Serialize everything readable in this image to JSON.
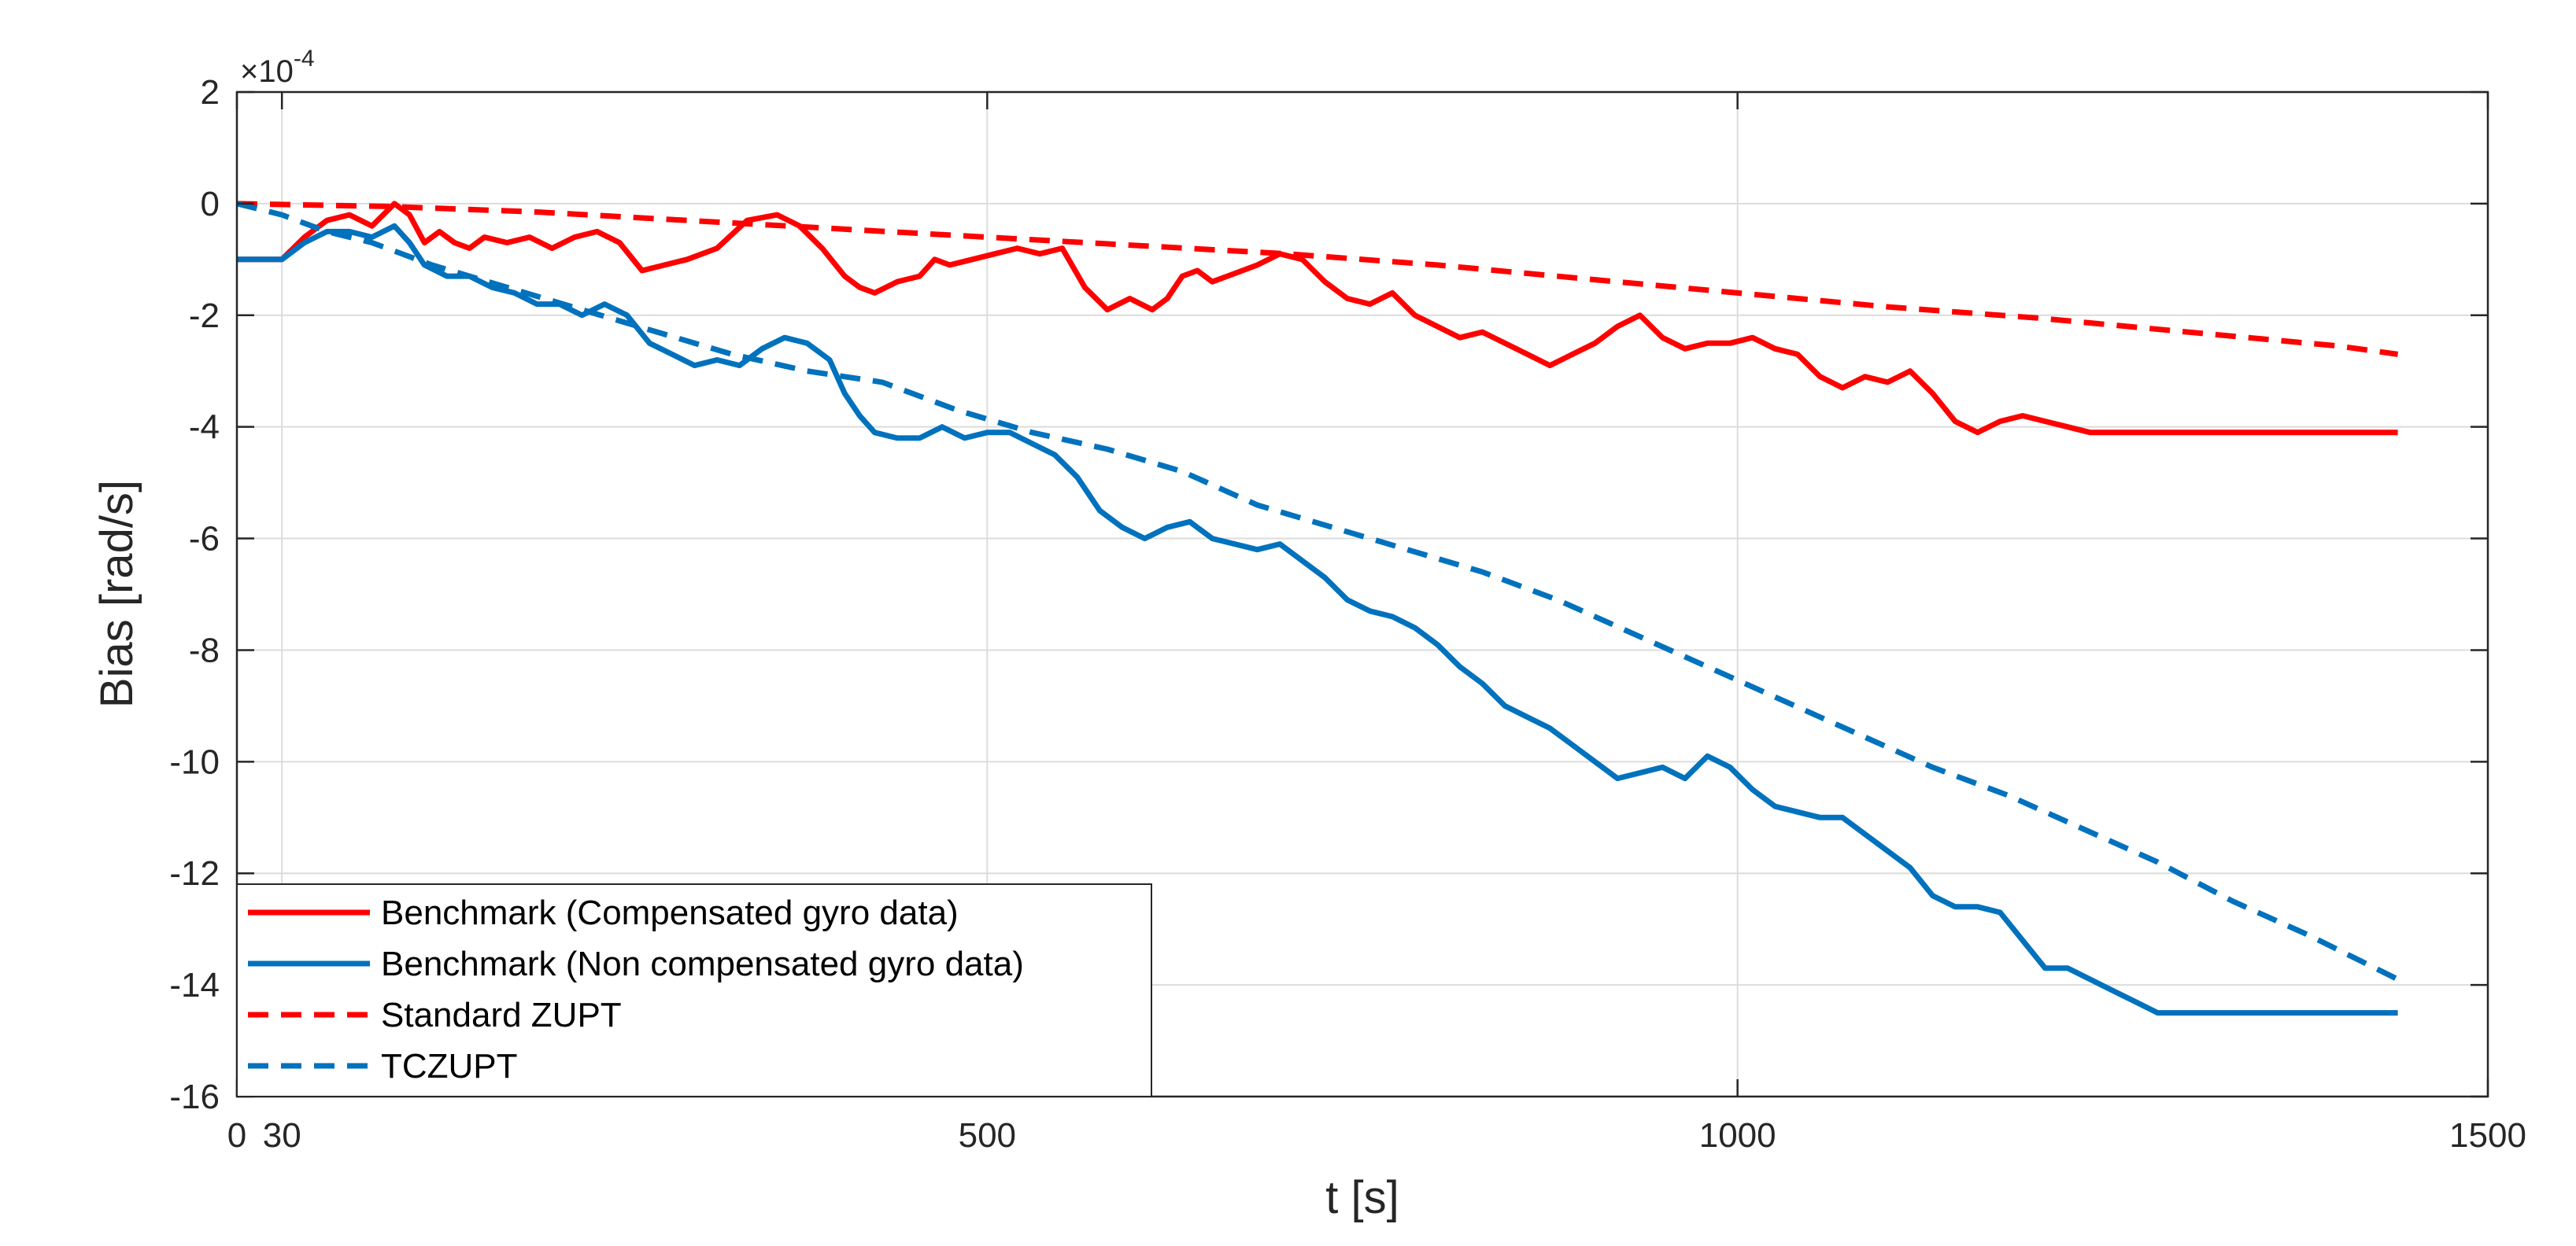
{
  "chart_data": {
    "type": "line",
    "title": "",
    "xlabel": "t [s]",
    "ylabel": "Bias [rad/s]",
    "y_exponent_multiplier": "×10",
    "y_exponent": "-4",
    "xlim": [
      0,
      1500
    ],
    "ylim": [
      -16,
      2
    ],
    "grid": true,
    "legend_position": "bottom-left",
    "x_ticks": [
      0,
      30,
      500,
      1000,
      1500
    ],
    "x_tick_labels": [
      "0",
      "30",
      "500",
      "1000",
      "1500"
    ],
    "y_ticks": [
      2,
      0,
      -2,
      -4,
      -6,
      -8,
      -10,
      -12,
      -14,
      -16
    ],
    "y_tick_labels": [
      "2",
      "0",
      "-2",
      "-4",
      "-6",
      "-8",
      "-10",
      "-12",
      "-14",
      "-16"
    ],
    "series": [
      {
        "name": "Benchmark (Compensated gyro data)",
        "style": "solid",
        "color": "#ff0000",
        "x": [
          0,
          30,
          45,
          60,
          75,
          90,
          105,
          115,
          125,
          135,
          145,
          155,
          165,
          180,
          195,
          210,
          225,
          240,
          255,
          270,
          285,
          300,
          320,
          340,
          360,
          375,
          390,
          405,
          415,
          425,
          440,
          455,
          465,
          475,
          490,
          505,
          520,
          535,
          550,
          565,
          580,
          595,
          610,
          620,
          630,
          640,
          650,
          660,
          670,
          680,
          695,
          710,
          725,
          740,
          755,
          770,
          785,
          800,
          815,
          830,
          845,
          860,
          875,
          890,
          905,
          920,
          935,
          950,
          965,
          980,
          995,
          1010,
          1025,
          1040,
          1055,
          1070,
          1085,
          1100,
          1115,
          1130,
          1145,
          1160,
          1175,
          1190,
          1205,
          1220,
          1235,
          1250,
          1265,
          1280,
          1295,
          1310,
          1325,
          1340,
          1355,
          1370,
          1385,
          1400,
          1415,
          1430,
          1440
        ],
        "y": [
          -1.0,
          -1.0,
          -0.6,
          -0.3,
          -0.2,
          -0.4,
          0.0,
          -0.2,
          -0.7,
          -0.5,
          -0.7,
          -0.8,
          -0.6,
          -0.7,
          -0.6,
          -0.8,
          -0.6,
          -0.5,
          -0.7,
          -1.2,
          -1.1,
          -1.0,
          -0.8,
          -0.3,
          -0.2,
          -0.4,
          -0.8,
          -1.3,
          -1.5,
          -1.6,
          -1.4,
          -1.3,
          -1.0,
          -1.1,
          -1.0,
          -0.9,
          -0.8,
          -0.9,
          -0.8,
          -1.5,
          -1.9,
          -1.7,
          -1.9,
          -1.7,
          -1.3,
          -1.2,
          -1.4,
          -1.3,
          -1.2,
          -1.1,
          -0.9,
          -1.0,
          -1.4,
          -1.7,
          -1.8,
          -1.6,
          -2.0,
          -2.2,
          -2.4,
          -2.3,
          -2.5,
          -2.7,
          -2.9,
          -2.7,
          -2.5,
          -2.2,
          -2.0,
          -2.4,
          -2.6,
          -2.5,
          -2.5,
          -2.4,
          -2.6,
          -2.7,
          -3.1,
          -3.3,
          -3.1,
          -3.2,
          -3.0,
          -3.4,
          -3.9,
          -4.1,
          -3.9,
          -3.8,
          -3.9,
          -4.0,
          -4.1,
          -4.1,
          -4.1,
          -4.1,
          -4.1,
          -4.1,
          -4.1,
          -4.1,
          -4.1,
          -4.1,
          -4.1,
          -4.1,
          -4.1,
          -4.1,
          -4.1
        ]
      },
      {
        "name": "Benchmark (Non compensated gyro data)",
        "style": "solid",
        "color": "#0072bd",
        "x": [
          0,
          30,
          45,
          60,
          75,
          90,
          105,
          115,
          125,
          140,
          155,
          170,
          185,
          200,
          215,
          230,
          245,
          260,
          275,
          290,
          305,
          320,
          335,
          350,
          365,
          380,
          395,
          405,
          415,
          425,
          440,
          455,
          470,
          485,
          500,
          515,
          530,
          545,
          560,
          575,
          590,
          605,
          620,
          635,
          650,
          665,
          680,
          695,
          710,
          725,
          740,
          755,
          770,
          785,
          800,
          815,
          830,
          845,
          860,
          875,
          890,
          905,
          920,
          935,
          950,
          965,
          980,
          995,
          1010,
          1025,
          1040,
          1055,
          1070,
          1085,
          1100,
          1115,
          1130,
          1145,
          1160,
          1175,
          1190,
          1205,
          1220,
          1235,
          1250,
          1265,
          1280,
          1295,
          1310,
          1325,
          1340,
          1355,
          1370,
          1385,
          1400,
          1415,
          1430,
          1440
        ],
        "y": [
          -1.0,
          -1.0,
          -0.7,
          -0.5,
          -0.5,
          -0.6,
          -0.4,
          -0.7,
          -1.1,
          -1.3,
          -1.3,
          -1.5,
          -1.6,
          -1.8,
          -1.8,
          -2.0,
          -1.8,
          -2.0,
          -2.5,
          -2.7,
          -2.9,
          -2.8,
          -2.9,
          -2.6,
          -2.4,
          -2.5,
          -2.8,
          -3.4,
          -3.8,
          -4.1,
          -4.2,
          -4.2,
          -4.0,
          -4.2,
          -4.1,
          -4.1,
          -4.3,
          -4.5,
          -4.9,
          -5.5,
          -5.8,
          -6.0,
          -5.8,
          -5.7,
          -6.0,
          -6.1,
          -6.2,
          -6.1,
          -6.4,
          -6.7,
          -7.1,
          -7.3,
          -7.4,
          -7.6,
          -7.9,
          -8.3,
          -8.6,
          -9.0,
          -9.2,
          -9.4,
          -9.7,
          -10.0,
          -10.3,
          -10.2,
          -10.1,
          -10.3,
          -9.9,
          -10.1,
          -10.5,
          -10.8,
          -10.9,
          -11.0,
          -11.0,
          -11.3,
          -11.6,
          -11.9,
          -12.4,
          -12.6,
          -12.6,
          -12.7,
          -13.2,
          -13.7,
          -13.7,
          -13.9,
          -14.1,
          -14.3,
          -14.5,
          -14.5,
          -14.5,
          -14.5,
          -14.5,
          -14.5,
          -14.5,
          -14.5,
          -14.5,
          -14.5,
          -14.5,
          -14.5
        ]
      },
      {
        "name": "Standard ZUPT",
        "style": "dashed",
        "color": "#ff0000",
        "x": [
          0,
          100,
          200,
          300,
          400,
          500,
          600,
          700,
          800,
          900,
          1000,
          1100,
          1200,
          1300,
          1400,
          1440
        ],
        "y": [
          0.0,
          -0.05,
          -0.15,
          -0.3,
          -0.45,
          -0.6,
          -0.75,
          -0.9,
          -1.1,
          -1.35,
          -1.6,
          -1.85,
          -2.05,
          -2.3,
          -2.55,
          -2.7
        ]
      },
      {
        "name": "TCZUPT",
        "style": "dashed",
        "color": "#0072bd",
        "x": [
          0,
          30,
          60,
          90,
          130,
          180,
          230,
          280,
          330,
          380,
          430,
          480,
          530,
          580,
          630,
          680,
          730,
          780,
          830,
          880,
          930,
          980,
          1030,
          1080,
          1130,
          1180,
          1230,
          1280,
          1330,
          1380,
          1440
        ],
        "y": [
          0.0,
          -0.2,
          -0.5,
          -0.7,
          -1.1,
          -1.5,
          -1.9,
          -2.3,
          -2.7,
          -3.0,
          -3.2,
          -3.7,
          -4.1,
          -4.4,
          -4.8,
          -5.4,
          -5.8,
          -6.2,
          -6.6,
          -7.1,
          -7.7,
          -8.3,
          -8.9,
          -9.5,
          -10.1,
          -10.6,
          -11.2,
          -11.8,
          -12.5,
          -13.1,
          -13.9
        ]
      }
    ]
  }
}
